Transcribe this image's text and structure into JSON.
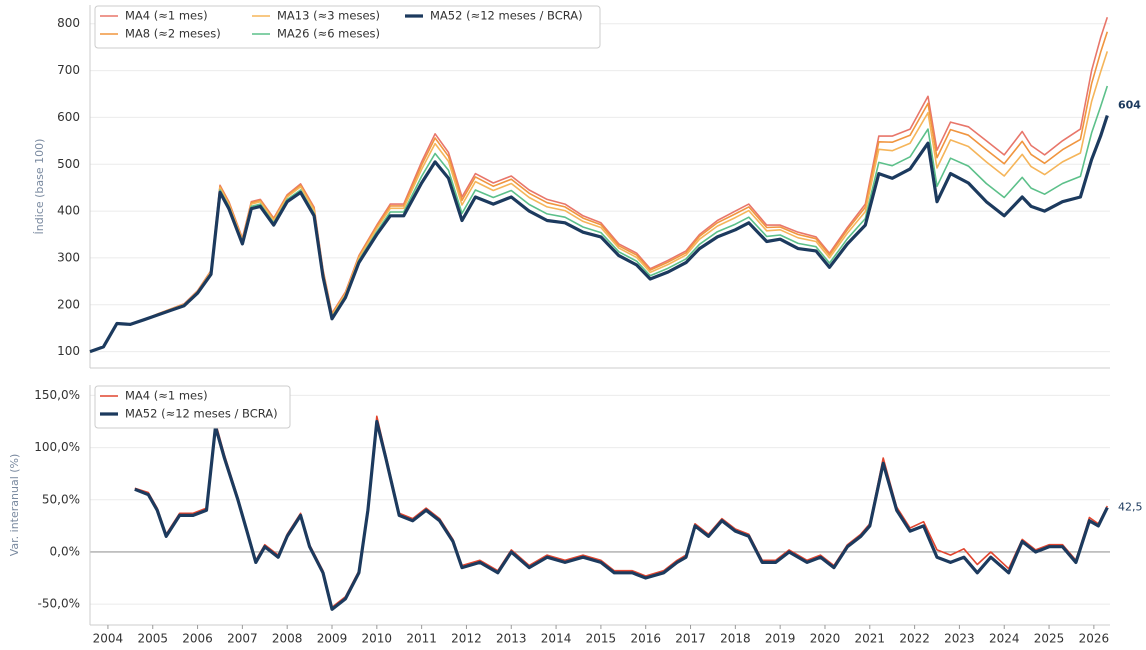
{
  "chart_data": [
    {
      "type": "line",
      "ylabel": "Índice (base 100)",
      "annotation": "604",
      "x": [
        2003.6,
        2003.9,
        2004.2,
        2004.5,
        2004.8,
        2005.1,
        2005.4,
        2005.7,
        2006.0,
        2006.3,
        2006.5,
        2006.7,
        2007.0,
        2007.2,
        2007.4,
        2007.7,
        2008.0,
        2008.3,
        2008.6,
        2008.8,
        2009.0,
        2009.3,
        2009.6,
        2010.0,
        2010.3,
        2010.6,
        2011.0,
        2011.3,
        2011.6,
        2011.9,
        2012.2,
        2012.6,
        2013.0,
        2013.4,
        2013.8,
        2014.2,
        2014.6,
        2015.0,
        2015.4,
        2015.8,
        2016.1,
        2016.5,
        2016.9,
        2017.2,
        2017.6,
        2018.0,
        2018.3,
        2018.7,
        2019.0,
        2019.4,
        2019.8,
        2020.1,
        2020.5,
        2020.9,
        2021.2,
        2021.5,
        2021.9,
        2022.3,
        2022.5,
        2022.8,
        2023.2,
        2023.6,
        2024.0,
        2024.4,
        2024.6,
        2024.9,
        2025.3,
        2025.7,
        2025.95,
        2026.15,
        2026.3
      ],
      "series": [
        {
          "name": "MA4  (≈1 mes)",
          "color": "#e8766a",
          "linewidth": 1.6,
          "values": [
            100,
            110,
            160,
            158,
            168,
            180,
            191,
            202,
            230,
            273,
            455,
            420,
            342,
            420,
            425,
            385,
            435,
            458,
            408,
            275,
            182,
            227,
            305,
            370,
            415,
            415,
            505,
            565,
            525,
            430,
            480,
            460,
            475,
            445,
            425,
            415,
            390,
            375,
            330,
            310,
            277,
            295,
            315,
            350,
            380,
            400,
            415,
            370,
            370,
            355,
            345,
            310,
            365,
            415,
            560,
            560,
            575,
            645,
            530,
            590,
            580,
            550,
            520,
            570,
            540,
            520,
            550,
            575,
            700,
            770,
            814
          ]
        },
        {
          "name": "MA8  (≈2 meses)",
          "color": "#f0953f",
          "linewidth": 1.6,
          "values": [
            100,
            110,
            160,
            158,
            168,
            180,
            191,
            201,
            229,
            272,
            453,
            418,
            340,
            418,
            423,
            383,
            433,
            455,
            405,
            273,
            180,
            225,
            303,
            367,
            411,
            411,
            498,
            556,
            517,
            423,
            473,
            453,
            468,
            438,
            418,
            409,
            385,
            371,
            326,
            306,
            274,
            291,
            311,
            346,
            375,
            394,
            409,
            365,
            366,
            350,
            341,
            306,
            360,
            408,
            548,
            547,
            562,
            630,
            514,
            574,
            562,
            531,
            501,
            549,
            521,
            502,
            531,
            553,
            672,
            739,
            783
          ]
        },
        {
          "name": "MA13 (≈3 meses)",
          "color": "#f5b55a",
          "linewidth": 1.6,
          "values": [
            100,
            110,
            160,
            158,
            168,
            179,
            190,
            201,
            228,
            270,
            450,
            415,
            338,
            415,
            420,
            380,
            430,
            452,
            402,
            270,
            178,
            223,
            300,
            363,
            406,
            406,
            489,
            544,
            506,
            413,
            463,
            444,
            459,
            429,
            409,
            401,
            378,
            365,
            321,
            301,
            269,
            286,
            306,
            340,
            368,
            386,
            401,
            358,
            360,
            343,
            335,
            300,
            353,
            399,
            532,
            529,
            545,
            610,
            492,
            552,
            538,
            505,
            475,
            521,
            495,
            478,
            505,
            524,
            634,
            697,
            741
          ]
        },
        {
          "name": "MA26 (≈6 meses)",
          "color": "#5cc08a",
          "linewidth": 1.6,
          "values": [
            100,
            110,
            160,
            158,
            168,
            179,
            189,
            199,
            227,
            267,
            445,
            410,
            334,
            410,
            415,
            375,
            425,
            445,
            395,
            265,
            174,
            219,
            295,
            356,
            398,
            398,
            474,
            523,
            487,
            395,
            445,
            429,
            444,
            414,
            394,
            387,
            366,
            354,
            313,
            293,
            262,
            278,
            298,
            329,
            356,
            372,
            387,
            346,
            349,
            331,
            324,
            289,
            341,
            384,
            504,
            497,
            516,
            575,
            453,
            513,
            496,
            459,
            429,
            472,
            449,
            436,
            459,
            474,
            567,
            623,
            667
          ]
        },
        {
          "name": "MA52 (≈12 meses / BCRA)",
          "color": "#1c3a5e",
          "linewidth": 3.2,
          "values": [
            100,
            110,
            160,
            158,
            168,
            178,
            188,
            198,
            225,
            265,
            440,
            405,
            330,
            405,
            410,
            370,
            420,
            440,
            390,
            260,
            170,
            215,
            290,
            350,
            390,
            390,
            460,
            505,
            470,
            380,
            430,
            415,
            430,
            400,
            380,
            375,
            355,
            345,
            305,
            285,
            255,
            270,
            290,
            320,
            345,
            360,
            375,
            335,
            340,
            320,
            315,
            280,
            330,
            370,
            480,
            470,
            490,
            545,
            420,
            480,
            460,
            420,
            390,
            430,
            410,
            400,
            420,
            430,
            510,
            560,
            604
          ]
        }
      ],
      "xlim": [
        2003.6,
        2026.36
      ],
      "ylim": [
        65,
        840
      ],
      "yticks": [
        100,
        200,
        300,
        400,
        500,
        600,
        700,
        800
      ],
      "grid": true,
      "legend": "upper left"
    },
    {
      "type": "line",
      "ylabel": "Var. interanual (%)",
      "annotation": "42,5",
      "x": [
        2004.6,
        2004.9,
        2005.1,
        2005.3,
        2005.6,
        2005.9,
        2006.2,
        2006.4,
        2006.6,
        2006.9,
        2007.1,
        2007.3,
        2007.5,
        2007.8,
        2008.0,
        2008.3,
        2008.5,
        2008.8,
        2009.0,
        2009.3,
        2009.6,
        2009.8,
        2010.0,
        2010.2,
        2010.5,
        2010.8,
        2011.1,
        2011.4,
        2011.7,
        2011.9,
        2012.3,
        2012.7,
        2013.0,
        2013.4,
        2013.8,
        2014.2,
        2014.6,
        2015.0,
        2015.3,
        2015.7,
        2016.0,
        2016.4,
        2016.7,
        2016.9,
        2017.1,
        2017.4,
        2017.7,
        2018.0,
        2018.3,
        2018.6,
        2018.9,
        2019.2,
        2019.6,
        2019.9,
        2020.2,
        2020.5,
        2020.8,
        2021.0,
        2021.3,
        2021.6,
        2021.9,
        2022.2,
        2022.5,
        2022.8,
        2023.1,
        2023.4,
        2023.7,
        2024.1,
        2024.4,
        2024.7,
        2025.0,
        2025.3,
        2025.6,
        2025.9,
        2026.1,
        2026.3
      ],
      "series": [
        {
          "name": "MA4  (≈1 mes)",
          "color": "#e0452f",
          "linewidth": 1.6,
          "values": [
            61,
            57,
            42,
            17,
            37,
            37,
            42,
            124,
            93,
            52,
            22,
            -8,
            7,
            -3,
            17,
            37,
            7,
            -18,
            -53,
            -43,
            -18,
            42,
            130,
            93,
            37,
            32,
            42,
            32,
            12,
            -13,
            -8,
            -18,
            2,
            -13,
            -3,
            -8,
            -3,
            -8,
            -18,
            -18,
            -23,
            -18,
            -8,
            -3,
            27,
            17,
            32,
            22,
            17,
            -8,
            -8,
            2,
            -8,
            -3,
            -13,
            7,
            17,
            27,
            90,
            43,
            23,
            29,
            2,
            -3,
            3,
            -12,
            0,
            -16,
            12,
            2,
            7,
            7,
            -8,
            33,
            27,
            44
          ]
        },
        {
          "name": "MA52 (≈12 meses / BCRA)",
          "color": "#1c3a5e",
          "linewidth": 3.2,
          "values": [
            60,
            55,
            40,
            15,
            35,
            35,
            40,
            120,
            90,
            50,
            20,
            -10,
            5,
            -5,
            15,
            35,
            5,
            -20,
            -55,
            -45,
            -20,
            40,
            125,
            90,
            35,
            30,
            40,
            30,
            10,
            -15,
            -10,
            -20,
            0,
            -15,
            -5,
            -10,
            -5,
            -10,
            -20,
            -20,
            -25,
            -20,
            -10,
            -5,
            25,
            15,
            30,
            20,
            15,
            -10,
            -10,
            0,
            -10,
            -5,
            -15,
            5,
            15,
            25,
            85,
            40,
            20,
            25,
            -5,
            -10,
            -5,
            -20,
            -5,
            -20,
            10,
            0,
            5,
            5,
            -10,
            30,
            25,
            42.5
          ]
        }
      ],
      "xlim": [
        2003.6,
        2026.36
      ],
      "ylim": [
        -70,
        160
      ],
      "xticks": [
        2004,
        2005,
        2006,
        2007,
        2008,
        2009,
        2010,
        2011,
        2012,
        2013,
        2014,
        2015,
        2016,
        2017,
        2018,
        2019,
        2020,
        2021,
        2022,
        2023,
        2024,
        2025,
        2026
      ],
      "yticks": [
        {
          "value": -50,
          "label": "-50,0%"
        },
        {
          "value": 0,
          "label": "0,0%"
        },
        {
          "value": 50,
          "label": "50,0%"
        },
        {
          "value": 100,
          "label": "100,0%"
        },
        {
          "value": 150,
          "label": "150,0%"
        }
      ],
      "grid": true,
      "legend": "upper left"
    }
  ]
}
